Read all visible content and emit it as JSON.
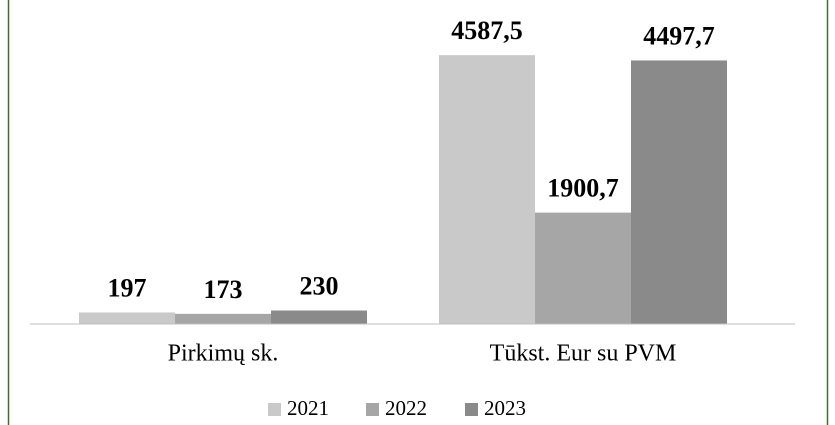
{
  "chart_data": {
    "type": "bar",
    "categories": [
      "Pirkimų sk.",
      "Tūkst. Eur su PVM"
    ],
    "series": [
      {
        "name": "2021",
        "color": "#c9c9c9",
        "values": [
          197,
          4587.5
        ],
        "value_labels": [
          "197",
          "4587,5"
        ]
      },
      {
        "name": "2022",
        "color": "#a6a6a6",
        "values": [
          173,
          1900.7
        ],
        "value_labels": [
          "173",
          "1900,7"
        ]
      },
      {
        "name": "2023",
        "color": "#8a8a8a",
        "values": [
          230,
          4497.7
        ],
        "value_labels": [
          "230",
          "4497,7"
        ]
      }
    ],
    "ylim": [
      0,
      5000
    ],
    "legend": "bottom"
  }
}
